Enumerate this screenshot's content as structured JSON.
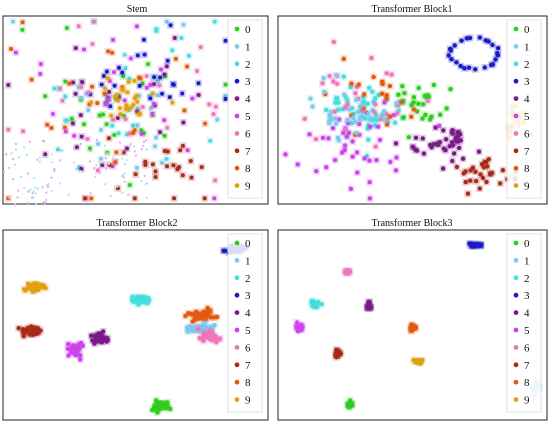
{
  "chart_data": [
    {
      "type": "scatter",
      "title": "Stem",
      "legend_position": "top-right",
      "grid": false,
      "classes": [
        {
          "name": "0",
          "color": "#2ecc1f"
        },
        {
          "name": "1",
          "color": "#7ec8ee"
        },
        {
          "name": "2",
          "color": "#44dde0"
        },
        {
          "name": "3",
          "color": "#1a1ac8"
        },
        {
          "name": "4",
          "color": "#7a1a88"
        },
        {
          "name": "5",
          "color": "#cc44ee"
        },
        {
          "name": "6",
          "color": "#ee77bb"
        },
        {
          "name": "7",
          "color": "#a82a1a"
        },
        {
          "name": "8",
          "color": "#e05a10"
        },
        {
          "name": "9",
          "color": "#e0a010"
        }
      ],
      "clusters": []
    },
    {
      "type": "scatter",
      "title": "Transformer Block1",
      "legend_position": "top-right",
      "grid": false,
      "clusters": [
        {
          "class": "3",
          "shape": "ring",
          "center": [
            0.73,
            0.8
          ],
          "spread": [
            0.09,
            0.08
          ],
          "count": 24
        },
        {
          "class": "2",
          "shape": "blob",
          "center": [
            0.33,
            0.5
          ],
          "spread": [
            0.12,
            0.14
          ],
          "count": 50
        },
        {
          "class": "0",
          "shape": "blob",
          "center": [
            0.54,
            0.52
          ],
          "spread": [
            0.1,
            0.14
          ],
          "count": 26
        },
        {
          "class": "4",
          "shape": "blob",
          "center": [
            0.6,
            0.32
          ],
          "spread": [
            0.12,
            0.1
          ],
          "count": 40
        },
        {
          "class": "9",
          "shape": "blob",
          "center": [
            0.88,
            0.46
          ],
          "spread": [
            0.05,
            0.1
          ],
          "count": 18
        },
        {
          "class": "7",
          "shape": "blob",
          "center": [
            0.77,
            0.17
          ],
          "spread": [
            0.09,
            0.08
          ],
          "count": 28
        },
        {
          "class": "5",
          "shape": "blob",
          "center": [
            0.3,
            0.3
          ],
          "spread": [
            0.2,
            0.22
          ],
          "count": 40
        },
        {
          "class": "6",
          "shape": "blob",
          "center": [
            0.3,
            0.55
          ],
          "spread": [
            0.18,
            0.2
          ],
          "count": 28
        },
        {
          "class": "8",
          "shape": "blob",
          "center": [
            0.38,
            0.6
          ],
          "spread": [
            0.16,
            0.18
          ],
          "count": 20
        },
        {
          "class": "1",
          "shape": "blob",
          "center": [
            0.24,
            0.5
          ],
          "spread": [
            0.14,
            0.14
          ],
          "count": 30
        }
      ]
    },
    {
      "type": "scatter",
      "title": "Transformer Block2",
      "legend_position": "top-right",
      "grid": false,
      "clusters": [
        {
          "class": "9",
          "shape": "blob",
          "center": [
            0.12,
            0.7
          ],
          "spread": [
            0.03,
            0.02
          ],
          "count": 32
        },
        {
          "class": "2",
          "shape": "blob",
          "center": [
            0.52,
            0.63
          ],
          "spread": [
            0.03,
            0.02
          ],
          "count": 32
        },
        {
          "class": "7",
          "shape": "blob",
          "center": [
            0.1,
            0.47
          ],
          "spread": [
            0.035,
            0.02
          ],
          "count": 34
        },
        {
          "class": "5",
          "shape": "blob",
          "center": [
            0.27,
            0.37
          ],
          "spread": [
            0.025,
            0.035
          ],
          "count": 34
        },
        {
          "class": "4",
          "shape": "blob",
          "center": [
            0.37,
            0.43
          ],
          "spread": [
            0.03,
            0.025
          ],
          "count": 34
        },
        {
          "class": "8",
          "shape": "blob",
          "center": [
            0.75,
            0.55
          ],
          "spread": [
            0.05,
            0.025
          ],
          "count": 36
        },
        {
          "class": "1",
          "shape": "blob",
          "center": [
            0.74,
            0.48
          ],
          "spread": [
            0.06,
            0.02
          ],
          "count": 40
        },
        {
          "class": "6",
          "shape": "blob",
          "center": [
            0.78,
            0.44
          ],
          "spread": [
            0.04,
            0.03
          ],
          "count": 30
        },
        {
          "class": "0",
          "shape": "blob",
          "center": [
            0.59,
            0.07
          ],
          "spread": [
            0.035,
            0.02
          ],
          "count": 38
        },
        {
          "class": "3",
          "shape": "blob",
          "center": [
            0.88,
            0.9
          ],
          "spread": [
            0.03,
            0.015
          ],
          "count": 30
        }
      ]
    },
    {
      "type": "scatter",
      "title": "Transformer Block3",
      "legend_position": "top-right",
      "grid": false,
      "clusters": [
        {
          "class": "3",
          "shape": "blob",
          "center": [
            0.73,
            0.92
          ],
          "spread": [
            0.025,
            0.008
          ],
          "count": 16
        },
        {
          "class": "6",
          "shape": "blob",
          "center": [
            0.26,
            0.78
          ],
          "spread": [
            0.01,
            0.01
          ],
          "count": 12
        },
        {
          "class": "2",
          "shape": "blob",
          "center": [
            0.14,
            0.61
          ],
          "spread": [
            0.015,
            0.018
          ],
          "count": 14
        },
        {
          "class": "4",
          "shape": "blob",
          "center": [
            0.34,
            0.6
          ],
          "spread": [
            0.008,
            0.02
          ],
          "count": 14
        },
        {
          "class": "5",
          "shape": "blob",
          "center": [
            0.08,
            0.49
          ],
          "spread": [
            0.012,
            0.018
          ],
          "count": 14
        },
        {
          "class": "8",
          "shape": "blob",
          "center": [
            0.5,
            0.48
          ],
          "spread": [
            0.012,
            0.02
          ],
          "count": 14
        },
        {
          "class": "7",
          "shape": "blob",
          "center": [
            0.22,
            0.35
          ],
          "spread": [
            0.01,
            0.018
          ],
          "count": 14
        },
        {
          "class": "9",
          "shape": "blob",
          "center": [
            0.52,
            0.31
          ],
          "spread": [
            0.015,
            0.01
          ],
          "count": 14
        },
        {
          "class": "0",
          "shape": "blob",
          "center": [
            0.27,
            0.08
          ],
          "spread": [
            0.008,
            0.018
          ],
          "count": 12
        },
        {
          "class": "1",
          "shape": "blob",
          "center": [
            0.96,
            0.17
          ],
          "spread": [
            0.012,
            0.022
          ],
          "count": 14
        }
      ]
    }
  ]
}
